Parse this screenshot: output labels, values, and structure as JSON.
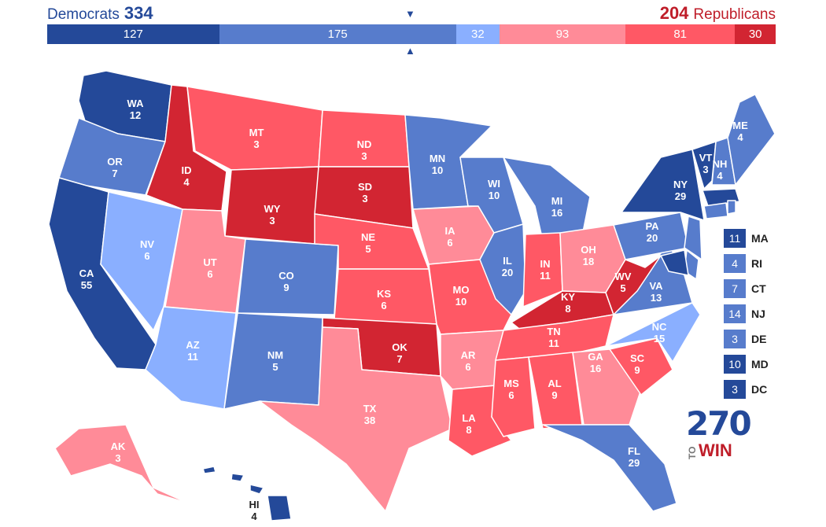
{
  "header": {
    "dem_label": "Democrats",
    "dem_total": "334",
    "rep_total": "204",
    "rep_label": "Republicans"
  },
  "bar": {
    "segments": [
      {
        "value": 127,
        "color": "#244999"
      },
      {
        "value": 175,
        "color": "#577ccc"
      },
      {
        "value": 32,
        "color": "#8aafff"
      },
      {
        "value": 93,
        "color": "#ff8b98"
      },
      {
        "value": 81,
        "color": "#ff5865"
      },
      {
        "value": 30,
        "color": "#d22532"
      }
    ]
  },
  "colors": {
    "safe_dem": "#244999",
    "likely_dem": "#577ccc",
    "lean_dem": "#8aafff",
    "lean_rep": "#ff8b98",
    "likely_rep": "#ff5865",
    "safe_rep": "#d22532"
  },
  "states": [
    {
      "abbr": "WA",
      "ev": "12",
      "rating": "safe_dem"
    },
    {
      "abbr": "OR",
      "ev": "7",
      "rating": "likely_dem"
    },
    {
      "abbr": "CA",
      "ev": "55",
      "rating": "safe_dem"
    },
    {
      "abbr": "NV",
      "ev": "6",
      "rating": "lean_dem"
    },
    {
      "abbr": "ID",
      "ev": "4",
      "rating": "safe_rep"
    },
    {
      "abbr": "MT",
      "ev": "3",
      "rating": "likely_rep"
    },
    {
      "abbr": "WY",
      "ev": "3",
      "rating": "safe_rep"
    },
    {
      "abbr": "UT",
      "ev": "6",
      "rating": "lean_rep"
    },
    {
      "abbr": "AZ",
      "ev": "11",
      "rating": "lean_dem"
    },
    {
      "abbr": "CO",
      "ev": "9",
      "rating": "likely_dem"
    },
    {
      "abbr": "NM",
      "ev": "5",
      "rating": "likely_dem"
    },
    {
      "abbr": "ND",
      "ev": "3",
      "rating": "likely_rep"
    },
    {
      "abbr": "SD",
      "ev": "3",
      "rating": "safe_rep"
    },
    {
      "abbr": "NE",
      "ev": "5",
      "rating": "likely_rep"
    },
    {
      "abbr": "KS",
      "ev": "6",
      "rating": "likely_rep"
    },
    {
      "abbr": "OK",
      "ev": "7",
      "rating": "safe_rep"
    },
    {
      "abbr": "TX",
      "ev": "38",
      "rating": "lean_rep"
    },
    {
      "abbr": "MN",
      "ev": "10",
      "rating": "likely_dem"
    },
    {
      "abbr": "IA",
      "ev": "6",
      "rating": "lean_rep"
    },
    {
      "abbr": "MO",
      "ev": "10",
      "rating": "likely_rep"
    },
    {
      "abbr": "AR",
      "ev": "6",
      "rating": "lean_rep"
    },
    {
      "abbr": "LA",
      "ev": "8",
      "rating": "likely_rep"
    },
    {
      "abbr": "WI",
      "ev": "10",
      "rating": "likely_dem"
    },
    {
      "abbr": "IL",
      "ev": "20",
      "rating": "likely_dem"
    },
    {
      "abbr": "MI",
      "ev": "16",
      "rating": "likely_dem"
    },
    {
      "abbr": "IN",
      "ev": "11",
      "rating": "likely_rep"
    },
    {
      "abbr": "OH",
      "ev": "18",
      "rating": "lean_rep"
    },
    {
      "abbr": "KY",
      "ev": "8",
      "rating": "safe_rep"
    },
    {
      "abbr": "TN",
      "ev": "11",
      "rating": "likely_rep"
    },
    {
      "abbr": "MS",
      "ev": "6",
      "rating": "likely_rep"
    },
    {
      "abbr": "AL",
      "ev": "9",
      "rating": "likely_rep"
    },
    {
      "abbr": "GA",
      "ev": "16",
      "rating": "lean_rep"
    },
    {
      "abbr": "FL",
      "ev": "29",
      "rating": "likely_dem"
    },
    {
      "abbr": "SC",
      "ev": "9",
      "rating": "likely_rep"
    },
    {
      "abbr": "NC",
      "ev": "15",
      "rating": "lean_dem"
    },
    {
      "abbr": "VA",
      "ev": "13",
      "rating": "likely_dem"
    },
    {
      "abbr": "WV",
      "ev": "5",
      "rating": "safe_rep"
    },
    {
      "abbr": "PA",
      "ev": "20",
      "rating": "likely_dem"
    },
    {
      "abbr": "NY",
      "ev": "29",
      "rating": "safe_dem"
    },
    {
      "abbr": "VT",
      "ev": "3",
      "rating": "safe_dem"
    },
    {
      "abbr": "NH",
      "ev": "4",
      "rating": "likely_dem"
    },
    {
      "abbr": "ME",
      "ev": "4",
      "rating": "likely_dem"
    },
    {
      "abbr": "AK",
      "ev": "3",
      "rating": "lean_rep"
    },
    {
      "abbr": "HI",
      "ev": "4",
      "rating": "safe_dem"
    }
  ],
  "legend": [
    {
      "ev": "11",
      "state": "MA",
      "rating": "safe_dem"
    },
    {
      "ev": "4",
      "state": "RI",
      "rating": "likely_dem"
    },
    {
      "ev": "7",
      "state": "CT",
      "rating": "likely_dem"
    },
    {
      "ev": "14",
      "state": "NJ",
      "rating": "likely_dem"
    },
    {
      "ev": "3",
      "state": "DE",
      "rating": "likely_dem"
    },
    {
      "ev": "10",
      "state": "MD",
      "rating": "safe_dem"
    },
    {
      "ev": "3",
      "state": "DC",
      "rating": "safe_dem"
    }
  ],
  "logo": {
    "number": "270",
    "to": "TO",
    "win": "WIN"
  }
}
